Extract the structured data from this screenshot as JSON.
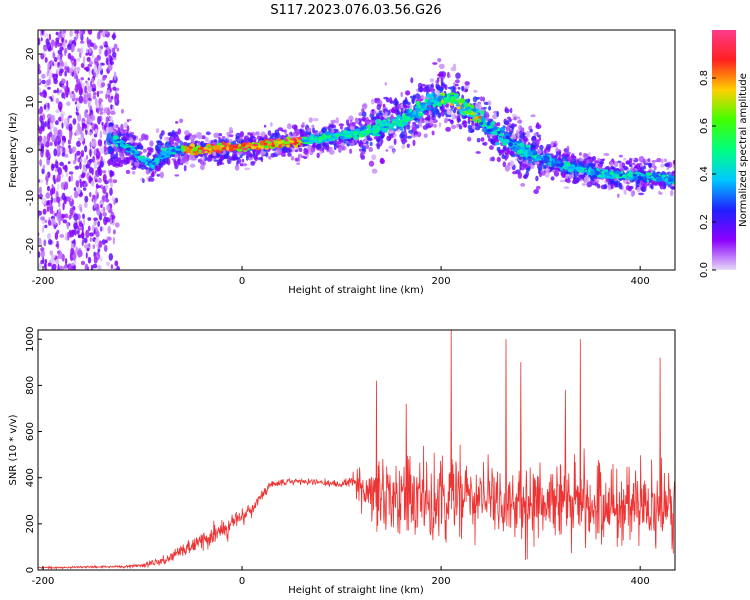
{
  "figure": {
    "title": "S117.2023.076.03.56.G26"
  },
  "chart_data": [
    {
      "type": "heatmap",
      "xlabel": "Height of straight line (km)",
      "ylabel": "Frequency (Hz)",
      "xlim": [
        -205,
        435
      ],
      "ylim": [
        -25,
        25
      ],
      "xticks": [
        -200,
        0,
        200,
        400
      ],
      "yticks": [
        -20,
        -10,
        0,
        10,
        20
      ],
      "colorbar": {
        "label": "Normalized spectral amplitude",
        "range": [
          0,
          1
        ],
        "ticks": [
          0.0,
          0.2,
          0.4,
          0.6,
          0.8
        ],
        "colormap": [
          "#e6d8f6",
          "#8c00ff",
          "#2020ff",
          "#00c8ff",
          "#00ff80",
          "#40ff00",
          "#ffd000",
          "#ff2020",
          "#ff3c8c"
        ]
      },
      "ridge": {
        "x": [
          -130,
          -110,
          -100,
          -90,
          -80,
          -70,
          -60,
          -40,
          -20,
          0,
          20,
          50,
          80,
          120,
          160,
          190,
          210,
          230,
          260,
          290,
          320,
          360,
          400,
          435
        ],
        "y": [
          2,
          0,
          -2,
          -3,
          -1,
          0,
          0,
          0,
          0.5,
          0.5,
          1,
          1.5,
          2.5,
          3.5,
          6,
          10,
          11,
          8,
          3,
          -1,
          -3,
          -5,
          -5.5,
          -6
        ]
      },
      "grid": false
    },
    {
      "type": "line",
      "xlabel": "Height of straight line (km)",
      "ylabel": "SNR (10 * v/v)",
      "xlim": [
        -205,
        435
      ],
      "ylim": [
        0,
        1040
      ],
      "xticks": [
        -200,
        0,
        200,
        400
      ],
      "yticks": [
        0,
        200,
        400,
        600,
        800,
        1000
      ],
      "series": [
        {
          "color": "#ee3333",
          "envelope": {
            "x": [
              -205,
              -120,
              -100,
              -80,
              -60,
              -40,
              -30,
              -20,
              -10,
              0,
              10,
              20,
              30,
              50,
              80,
              100,
              110,
              115,
              130,
              150,
              200,
              250,
              300,
              350,
              400,
              435
            ],
            "mean": [
              10,
              15,
              20,
              40,
              80,
              130,
              160,
              170,
              200,
              230,
              260,
              320,
              370,
              385,
              380,
              370,
              390,
              380,
              330,
              300,
              300,
              300,
              300,
              280,
              280,
              260
            ],
            "spread": [
              6,
              8,
              12,
              30,
              50,
              70,
              80,
              80,
              70,
              60,
              50,
              40,
              25,
              20,
              20,
              25,
              35,
              100,
              220,
              260,
              280,
              290,
              290,
              280,
              270,
              260
            ]
          },
          "peaks": [
            {
              "x": 135,
              "y": 820
            },
            {
              "x": 165,
              "y": 720
            },
            {
              "x": 210,
              "y": 1040
            },
            {
              "x": 265,
              "y": 1000
            },
            {
              "x": 280,
              "y": 900
            },
            {
              "x": 325,
              "y": 780
            },
            {
              "x": 340,
              "y": 1000
            },
            {
              "x": 420,
              "y": 920
            }
          ]
        }
      ],
      "grid": false
    }
  ]
}
